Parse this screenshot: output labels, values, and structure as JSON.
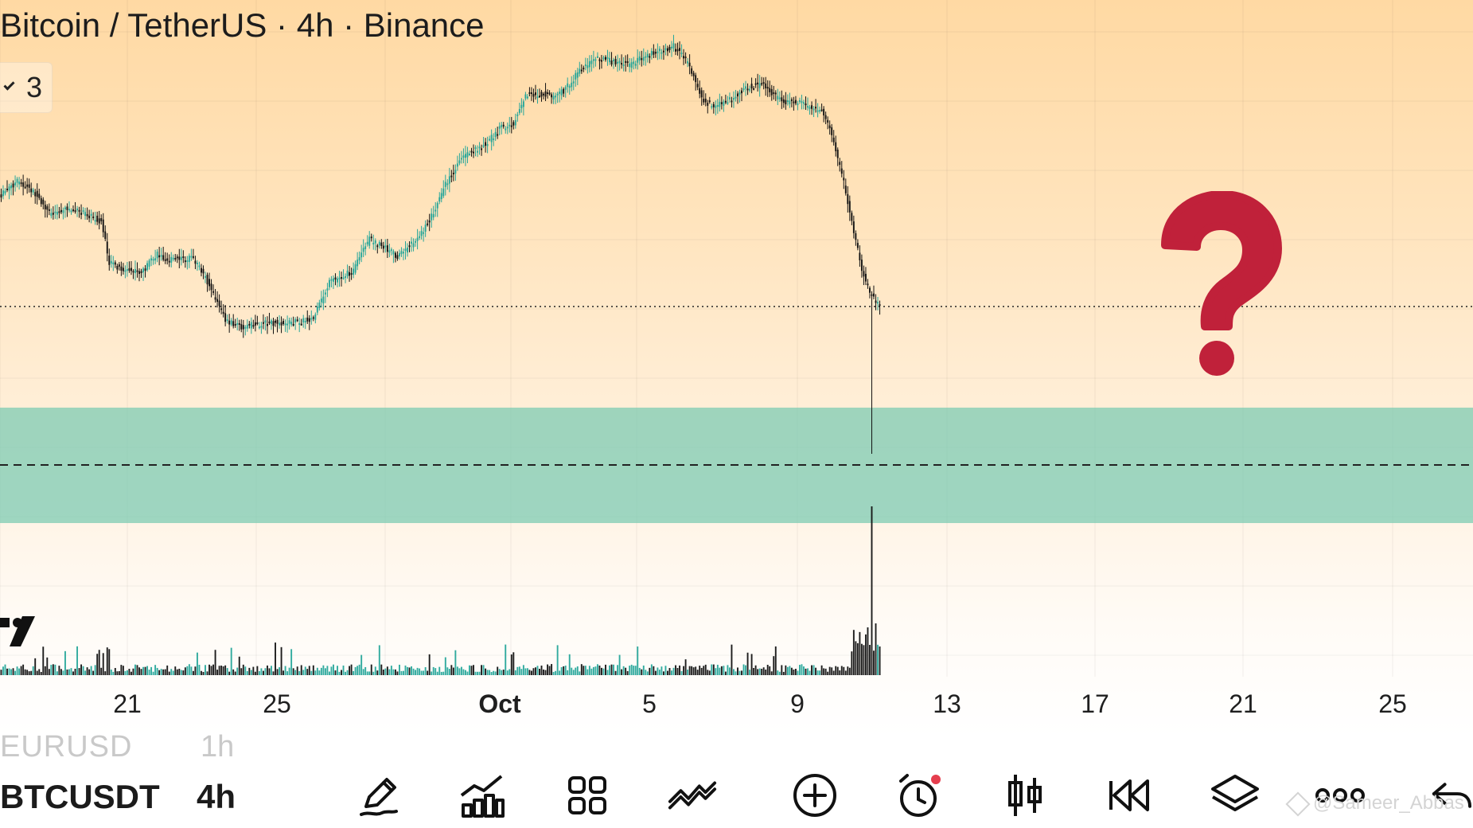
{
  "chart": {
    "title": "Bitcoin / TetherUS · 4h · Binance",
    "indicator_count": "3",
    "x_ticks": [
      {
        "label": "21",
        "bold": false
      },
      {
        "label": "25",
        "bold": false
      },
      {
        "label": "Oct",
        "bold": true
      },
      {
        "label": "5",
        "bold": false
      },
      {
        "label": "9",
        "bold": false
      },
      {
        "label": "13",
        "bold": false
      },
      {
        "label": "17",
        "bold": false
      },
      {
        "label": "21",
        "bold": false
      },
      {
        "label": "25",
        "bold": false
      }
    ],
    "colors": {
      "up": "#26a69a",
      "down": "#111111",
      "zone": "#7ecbb3",
      "question": "#c0213a"
    }
  },
  "chart_data": {
    "type": "candlestick",
    "symbol": "BTCUSDT",
    "interval": "4h",
    "start_date": "2025-09-17",
    "candles_per_day": 6,
    "annotations": [
      {
        "type": "demand_zone",
        "label": ""
      },
      {
        "type": "question_mark",
        "label": "?"
      }
    ]
  },
  "symbol_bar": {
    "prev_symbol": "EURUSD",
    "prev_interval": "1h",
    "symbol": "BTCUSDT",
    "interval": "4h",
    "watermark": "@Sameer_Abbas"
  },
  "toolbar": [
    {
      "name": "draw-tool-button",
      "icon": "pencil-icon"
    },
    {
      "name": "indicators-button",
      "icon": "chart-bars-icon"
    },
    {
      "name": "templates-button",
      "icon": "grid-icon"
    },
    {
      "name": "compare-button",
      "icon": "trend-lines-icon"
    },
    {
      "name": "add-button",
      "icon": "plus-circle-icon"
    },
    {
      "name": "alert-button",
      "icon": "alarm-clock-icon"
    },
    {
      "name": "chart-type-button",
      "icon": "candles-icon"
    },
    {
      "name": "replay-button",
      "icon": "rewind-icon"
    },
    {
      "name": "layers-button",
      "icon": "layers-icon"
    },
    {
      "name": "more-button",
      "icon": "more-dots-icon"
    },
    {
      "name": "undo-button",
      "icon": "undo-arrow-icon"
    }
  ]
}
